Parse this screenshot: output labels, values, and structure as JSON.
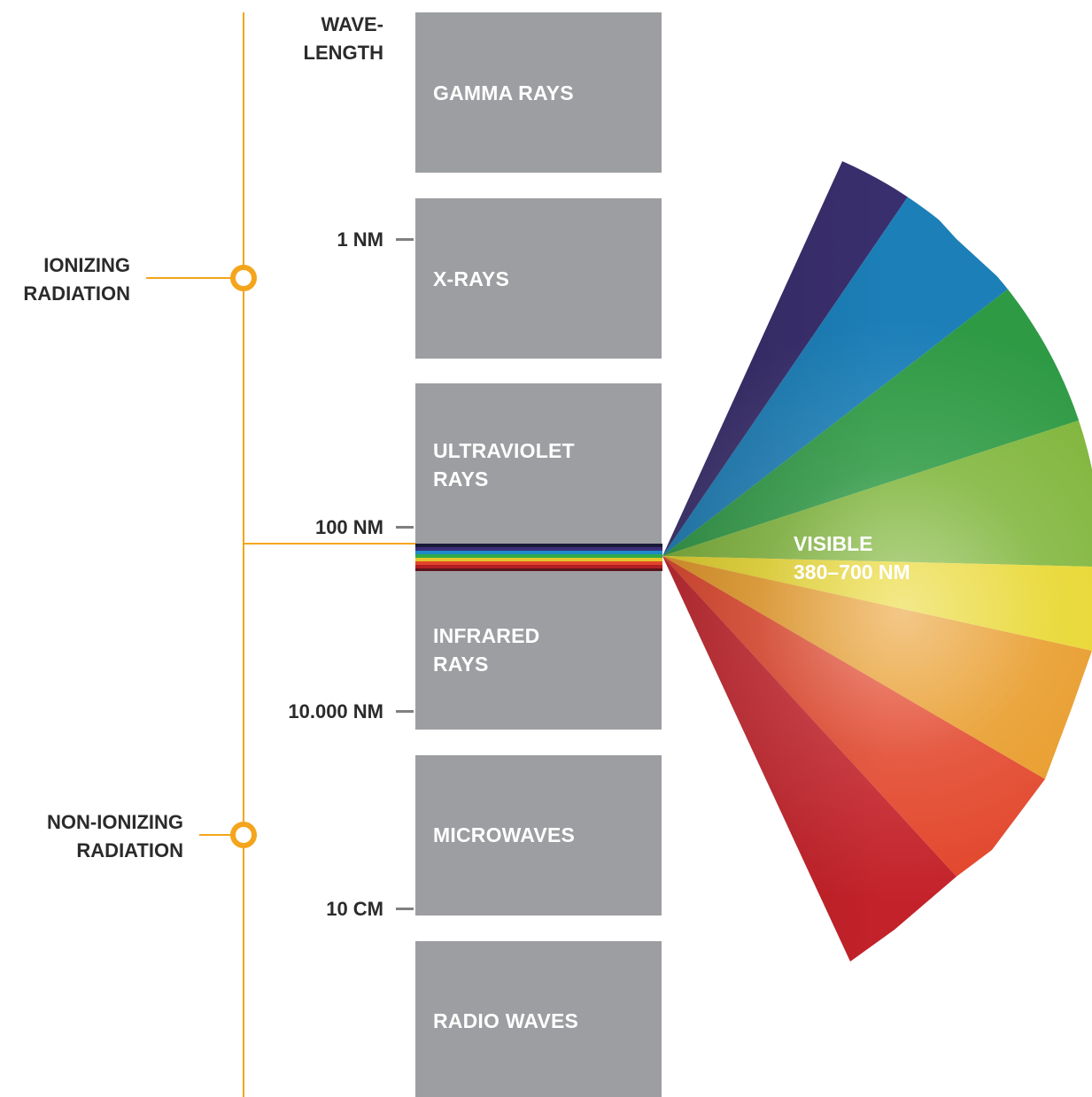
{
  "axis": {
    "heading": "WAVE-\nLENGTH",
    "ticks": [
      "1 NM",
      "100 NM",
      "10.000 NM",
      "10 CM"
    ]
  },
  "categories": {
    "ionizing": "IONIZING\nRADIATION",
    "non_ionizing": "NON-IONIZING\nRADIATION"
  },
  "bands": [
    "GAMMA RAYS",
    "X-RAYS",
    "ULTRAVIOLET\nRAYS",
    "INFRARED\nRAYS",
    "MICROWAVES",
    "RADIO WAVES"
  ],
  "visible": {
    "label": "VISIBLE\n380–700 NM"
  },
  "colors": {
    "accent": "#f4a51c",
    "band": "#9d9ea1",
    "text": "#2b2b2b"
  }
}
